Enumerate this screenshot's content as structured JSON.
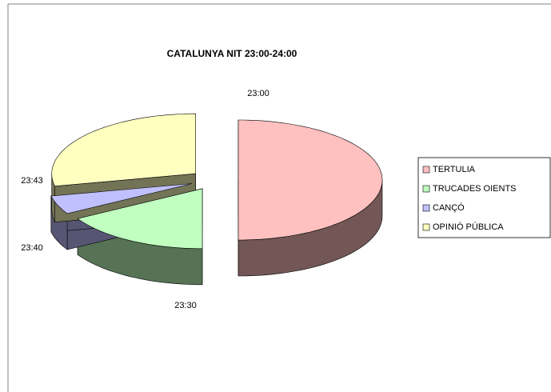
{
  "chart_data": {
    "type": "pie",
    "title": "CATALUNYA NIT 23:00-24:00",
    "categories": [
      "TERTULIA",
      "TRUCADES OIENTS",
      "CANÇÓ",
      "OPINIÓ PÚBLICA"
    ],
    "values": [
      30,
      10,
      3,
      17
    ],
    "colors": [
      "#ffc0c0",
      "#c0ffc0",
      "#c0c0ff",
      "#ffffc0"
    ],
    "annotations": [
      "23:00",
      "23:30",
      "23:40",
      "23:43"
    ],
    "legend": "right"
  }
}
